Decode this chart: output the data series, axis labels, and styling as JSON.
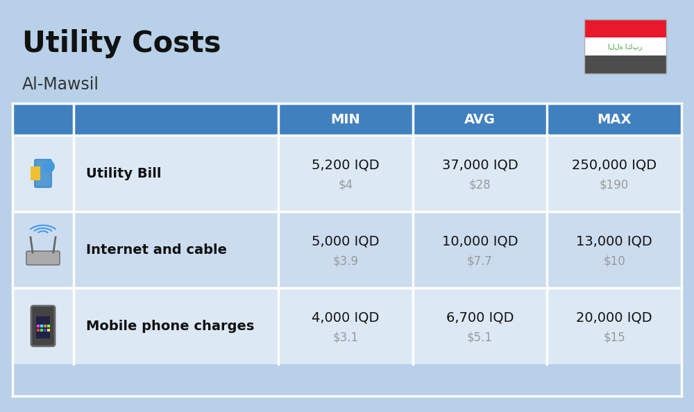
{
  "title": "Utility Costs",
  "subtitle": "Al-Mawsil",
  "background_color": "#b8d0e8",
  "header_bg_color": "#4080bf",
  "header_text_color": "#ffffff",
  "row_bg_color_1": "#dce9f5",
  "row_bg_color_2": "#ccdcef",
  "table_border_color": "#ffffff",
  "label_text_color": "#111111",
  "value_text_color": "#111111",
  "usd_text_color": "#999999",
  "col_headers": [
    "MIN",
    "AVG",
    "MAX"
  ],
  "rows": [
    {
      "label": "Utility Bill",
      "min_iqd": "5,200 IQD",
      "min_usd": "$4",
      "avg_iqd": "37,000 IQD",
      "avg_usd": "$28",
      "max_iqd": "250,000 IQD",
      "max_usd": "$190"
    },
    {
      "label": "Internet and cable",
      "min_iqd": "5,000 IQD",
      "min_usd": "$3.9",
      "avg_iqd": "10,000 IQD",
      "avg_usd": "$7.7",
      "max_iqd": "13,000 IQD",
      "max_usd": "$10"
    },
    {
      "label": "Mobile phone charges",
      "min_iqd": "4,000 IQD",
      "min_usd": "$3.1",
      "avg_iqd": "6,700 IQD",
      "avg_usd": "$5.1",
      "max_iqd": "20,000 IQD",
      "max_usd": "$15"
    }
  ],
  "title_fontsize": 30,
  "subtitle_fontsize": 17,
  "header_fontsize": 14,
  "label_fontsize": 14,
  "value_fontsize": 14,
  "usd_fontsize": 12,
  "iraq_flag_red": "#e8192c",
  "iraq_flag_white": "#ffffff",
  "iraq_flag_black": "#4d4d4d",
  "iraq_flag_green": "#339933",
  "flag_text": "الله اكبر"
}
